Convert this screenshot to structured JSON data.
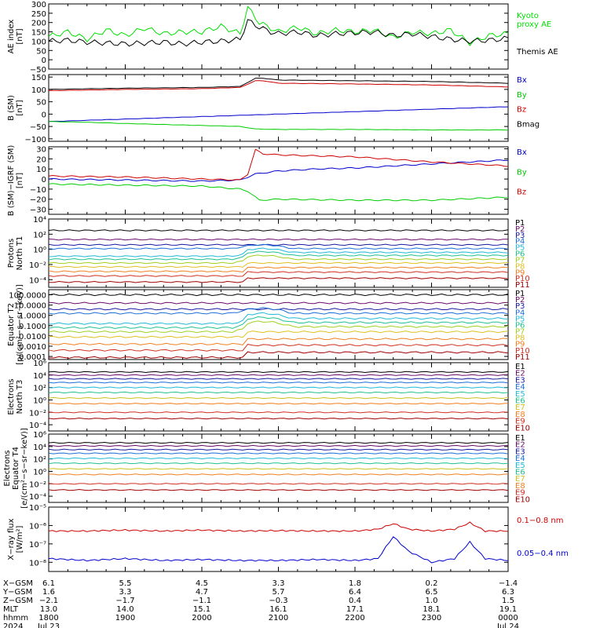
{
  "chart_data": [
    {
      "type": "line",
      "panel": "ae",
      "ylabel_lines": [
        "AE index",
        "[nT]"
      ],
      "ylim": [
        -50,
        300
      ],
      "yticks": [
        "300",
        "250",
        "200",
        "150",
        "100",
        "50",
        "0",
        "−50"
      ],
      "yticks_values": [
        300,
        250,
        200,
        150,
        100,
        50,
        0,
        -50
      ],
      "series": [
        {
          "name": "Kyoto proxy AE",
          "color": "#00e000",
          "x": [
            0,
            0.25,
            0.5,
            0.75,
            1,
            1.25,
            1.5,
            1.75,
            2,
            2.25,
            2.5,
            2.6,
            2.75,
            2.9,
            3,
            3.25,
            3.5,
            3.75,
            4,
            4.25,
            4.5,
            4.75,
            5,
            5.25,
            5.5,
            5.75,
            6
          ],
          "values": [
            125,
            150,
            110,
            160,
            130,
            170,
            140,
            150,
            150,
            180,
            140,
            280,
            200,
            170,
            150,
            175,
            140,
            160,
            150,
            160,
            120,
            150,
            140,
            160,
            90,
            130,
            140
          ]
        },
        {
          "name": "Themis AE",
          "color": "#000000",
          "x": [
            0,
            0.25,
            0.5,
            0.75,
            1,
            1.25,
            1.5,
            1.75,
            2,
            2.25,
            2.5,
            2.6,
            2.75,
            2.9,
            3,
            3.25,
            3.5,
            3.75,
            4,
            4.25,
            4.5,
            4.75,
            5,
            5.25,
            5.5,
            5.75,
            6
          ],
          "values": [
            100,
            105,
            95,
            90,
            85,
            90,
            95,
            85,
            95,
            100,
            110,
            210,
            175,
            150,
            140,
            150,
            130,
            140,
            145,
            150,
            130,
            140,
            125,
            110,
            100,
            105,
            115
          ]
        }
      ],
      "legend": [
        "Kyoto\nproxy AE",
        "Themis AE"
      ]
    },
    {
      "type": "line",
      "panel": "b_sm",
      "ylabel_lines": [
        "B (SM)",
        "[nT]"
      ],
      "ylim": [
        -110,
        160
      ],
      "yticks": [
        "150",
        "100",
        "50",
        "0",
        "−50",
        "−100"
      ],
      "yticks_values": [
        150,
        100,
        50,
        0,
        -50,
        -100
      ],
      "series": [
        {
          "name": "Bx",
          "color": "#0000cc",
          "x": [
            0,
            6
          ],
          "values": [
            -30,
            30
          ]
        },
        {
          "name": "By",
          "color": "#00cc00",
          "x": [
            0,
            0.5,
            1,
            1.5,
            2,
            2.5,
            2.7,
            3,
            4,
            5,
            6
          ],
          "values": [
            -30,
            -33,
            -38,
            -42,
            -46,
            -50,
            -60,
            -62,
            -62,
            -64,
            -64
          ]
        },
        {
          "name": "Bz",
          "color": "#cc0000",
          "x": [
            0,
            1,
            2,
            2.5,
            2.7,
            2.8,
            3,
            4,
            5,
            6
          ],
          "values": [
            95,
            100,
            103,
            108,
            135,
            135,
            125,
            122,
            118,
            110
          ]
        },
        {
          "name": "Bmag",
          "color": "#000000",
          "x": [
            0,
            1,
            2,
            2.5,
            2.7,
            2.8,
            3,
            4,
            5,
            6
          ],
          "values": [
            100,
            105,
            108,
            112,
            145,
            145,
            138,
            135,
            132,
            125
          ]
        }
      ],
      "legend": [
        "Bx",
        "By",
        "Bz",
        "Bmag"
      ]
    },
    {
      "type": "line",
      "panel": "b_igrf",
      "ylabel_lines": [
        "B (SM)−IGRF (SM)",
        "[nT]"
      ],
      "ylim": [
        -35,
        32
      ],
      "yticks": [
        "30",
        "20",
        "10",
        "0",
        "−10",
        "−20",
        "−30"
      ],
      "yticks_values": [
        30,
        20,
        10,
        0,
        -10,
        -20,
        -30
      ],
      "series": [
        {
          "name": "Bx",
          "color": "#0000cc",
          "x": [
            0,
            1,
            2,
            2.5,
            2.7,
            3,
            3.5,
            4,
            4.5,
            5,
            5.5,
            6
          ],
          "values": [
            0,
            -1,
            -2,
            -1,
            5,
            8,
            10,
            11,
            13,
            15,
            17,
            19
          ]
        },
        {
          "name": "By",
          "color": "#00cc00",
          "x": [
            0,
            1,
            2,
            2.5,
            2.6,
            2.75,
            3,
            4,
            5,
            6
          ],
          "values": [
            -5,
            -6,
            -7,
            -10,
            -12,
            -21,
            -20,
            -21,
            -21,
            -18
          ]
        },
        {
          "name": "Bz",
          "color": "#cc0000",
          "x": [
            0,
            1,
            2,
            2.5,
            2.6,
            2.7,
            2.8,
            3,
            4,
            5,
            6
          ],
          "values": [
            3,
            2,
            0,
            -1,
            5,
            29,
            25,
            24,
            22,
            17,
            13
          ]
        }
      ],
      "legend": [
        "Bx",
        "By",
        "Bz"
      ]
    },
    {
      "type": "line",
      "panel": "protons_north",
      "ylabel_lines": [
        "Protons",
        "North T1"
      ],
      "log_scale": true,
      "ylim_log10": [
        -5,
        4
      ],
      "yticks": [
        "10⁴",
        "10²",
        "10⁰",
        "10⁻²",
        "10⁻⁴"
      ],
      "yticks_log10": [
        4,
        2,
        0,
        -2,
        -4
      ],
      "series_levels_log10": [
        2.5,
        1.3,
        0.6,
        0.1,
        -0.4,
        -0.8,
        -1.3,
        -1.8,
        -2.4,
        -3.0,
        -3.8
      ],
      "legend": [
        "P1",
        "P2",
        "P3",
        "P4",
        "P5",
        "P6",
        "P7",
        "P8",
        "P9",
        "P10",
        "P11"
      ]
    },
    {
      "type": "line",
      "panel": "protons_equator",
      "ylabel_lines": [
        "Equator T2",
        "[p/(cm²−s−sr−keV)]"
      ],
      "log_scale": true,
      "ylim_log10": [
        -4.3,
        2.5
      ],
      "yticks": [
        "100.0000",
        "10.0000",
        "1.0000",
        "0.1000",
        "0.0100",
        "0.0010",
        "0.0001"
      ],
      "yticks_log10": [
        2,
        1,
        0,
        -1,
        -2,
        -3,
        -4
      ],
      "series_levels_log10": [
        2.0,
        1.2,
        0.6,
        0.2,
        -0.3,
        -0.7,
        -1.1,
        -1.6,
        -2.3,
        -2.9,
        -3.6
      ],
      "legend": [
        "P1",
        "P2",
        "P3",
        "P4",
        "P5",
        "P6",
        "P7",
        "P8",
        "P9",
        "P10",
        "P11"
      ]
    },
    {
      "type": "line",
      "panel": "electrons_north",
      "ylabel_lines": [
        "Electrons",
        "North T3"
      ],
      "log_scale": true,
      "ylim_log10": [
        -5,
        6
      ],
      "yticks": [
        "10⁶",
        "10⁴",
        "10²",
        "10⁰",
        "10⁻²",
        "10⁻⁴"
      ],
      "yticks_log10": [
        6,
        4,
        2,
        0,
        -2,
        -4
      ],
      "series_levels_log10": [
        4.5,
        4.0,
        3.4,
        2.8,
        2.0,
        1.2,
        0.3,
        -0.6,
        -2.0,
        -3.0
      ],
      "legend": [
        "E1",
        "E2",
        "E3",
        "E4",
        "E5",
        "E6",
        "E7",
        "E8",
        "E9",
        "E10"
      ]
    },
    {
      "type": "line",
      "panel": "electrons_equator",
      "ylabel_lines": [
        "Electrons",
        "Equator T4",
        "[e/(cm²−s−sr−keV)]"
      ],
      "log_scale": true,
      "ylim_log10": [
        -5,
        6
      ],
      "yticks": [
        "10⁶",
        "10⁴",
        "10²",
        "10⁰",
        "10⁻²",
        "10⁻⁴"
      ],
      "yticks_log10": [
        6,
        4,
        2,
        0,
        -2,
        -4
      ],
      "series_levels_log10": [
        4.6,
        4.1,
        3.5,
        2.9,
        2.1,
        1.3,
        0.4,
        -0.5,
        -2.0,
        -3.0
      ],
      "legend": [
        "E1",
        "E2",
        "E3",
        "E4",
        "E5",
        "E6",
        "E7",
        "E8",
        "E9",
        "E10"
      ]
    },
    {
      "type": "line",
      "panel": "xray",
      "ylabel_lines": [
        "X−ray flux",
        "[W/m²]"
      ],
      "log_scale": true,
      "ylim_log10": [
        -8.5,
        -5
      ],
      "yticks": [
        "10⁻⁵",
        "10⁻⁶",
        "10⁻⁷",
        "10⁻⁸"
      ],
      "yticks_log10": [
        -5,
        -6,
        -7,
        -8
      ],
      "series": [
        {
          "name": "0.1−0.8 nm",
          "color": "#cc0000",
          "x": [
            0,
            0.5,
            1,
            1.5,
            2,
            2.5,
            3,
            3.5,
            4,
            4.3,
            4.5,
            4.7,
            5,
            5.3,
            5.5,
            5.7,
            6
          ],
          "values_log10": [
            -6.3,
            -6.3,
            -6.25,
            -6.3,
            -6.25,
            -6.3,
            -6.28,
            -6.3,
            -6.3,
            -6.2,
            -5.9,
            -6.2,
            -6.3,
            -6.2,
            -5.85,
            -6.3,
            -6.3
          ]
        },
        {
          "name": "0.05−0.4 nm",
          "color": "#0000cc",
          "x": [
            0,
            0.5,
            1,
            1.5,
            2,
            2.5,
            3,
            3.5,
            4,
            4.3,
            4.5,
            4.7,
            5,
            5.3,
            5.5,
            5.7,
            6
          ],
          "values_log10": [
            -7.8,
            -7.9,
            -7.8,
            -7.9,
            -7.85,
            -7.9,
            -7.9,
            -7.85,
            -7.9,
            -7.8,
            -6.6,
            -7.4,
            -8.0,
            -7.8,
            -6.9,
            -7.8,
            -7.9
          ]
        }
      ],
      "legend": [
        "0.1−0.8 nm",
        "0.05−0.4 nm"
      ]
    }
  ],
  "colors11": [
    "#000000",
    "#6a0d6a",
    "#1a1aa0",
    "#1c6fd9",
    "#20b8d8",
    "#20c090",
    "#a0d020",
    "#e0c020",
    "#f08020",
    "#d03020",
    "#a00000"
  ],
  "colors10": [
    "#000000",
    "#6a0d6a",
    "#1a1aa0",
    "#1c6fd9",
    "#20b8d8",
    "#20c090",
    "#d0c020",
    "#f08020",
    "#d03020",
    "#a00000"
  ],
  "footer": {
    "rows": [
      {
        "label": "X−GSM",
        "values": [
          "6.1",
          "5.5",
          "4.5",
          "3.3",
          "1.8",
          "0.2",
          "−1.4"
        ]
      },
      {
        "label": "Y−GSM",
        "values": [
          "1.6",
          "3.3",
          "4.7",
          "5.7",
          "6.4",
          "6.5",
          "6.3"
        ]
      },
      {
        "label": "Z−GSM",
        "values": [
          "−2.1",
          "−1.7",
          "−1.1",
          "−0.3",
          "0.4",
          "1.0",
          "1.5"
        ]
      },
      {
        "label": "MLT",
        "values": [
          "13.0",
          "14.0",
          "15.1",
          "16.1",
          "17.1",
          "18.1",
          "19.1"
        ]
      },
      {
        "label": "hhmm",
        "values": [
          "1800",
          "1900",
          "2000",
          "2100",
          "2200",
          "2300",
          "0000"
        ]
      },
      {
        "label": "2024",
        "values": [
          "Jul 23",
          "",
          "",
          "",
          "",
          "",
          "Jul 24"
        ]
      }
    ]
  }
}
